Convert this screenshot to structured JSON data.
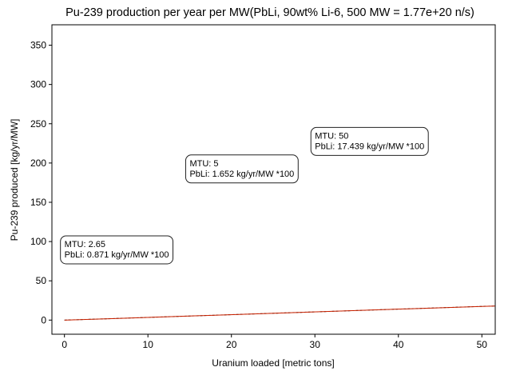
{
  "chart_data": {
    "type": "line",
    "title": "Pu-239 production per year per MW(PbLi, 90wt% Li-6, 500 MW = 1.77e+20 n/s)",
    "xlabel": "Uranium loaded [metric tons]",
    "ylabel": "Pu-239 produced [kg/yr/MW]",
    "xlim": [
      -1.5,
      51.6
    ],
    "ylim": [
      -18,
      376
    ],
    "xticks": [
      0,
      10,
      20,
      30,
      40,
      50
    ],
    "yticks": [
      0,
      50,
      100,
      150,
      200,
      250,
      300,
      350
    ],
    "grid": false,
    "series": [
      {
        "color": "#000000",
        "style": "dashed",
        "x": [
          0,
          2.65,
          5,
          50,
          51.6
        ],
        "y": [
          0,
          0.871,
          1.652,
          17.439,
          17.9
        ]
      },
      {
        "color": "#cc2200",
        "style": "solid",
        "x": [
          0,
          2.65,
          5,
          50,
          51.6
        ],
        "y": [
          0,
          0.871,
          1.652,
          17.439,
          17.9
        ]
      }
    ],
    "annotations": [
      {
        "line1": "MTU: 2.65",
        "line2": "PbLi: 0.871 kg/yr/MW *100",
        "x": 0,
        "y": 93
      },
      {
        "line1": "MTU: 5",
        "line2": "PbLi: 1.652 kg/yr/MW *100",
        "x": 15,
        "y": 196
      },
      {
        "line1": "MTU: 50",
        "line2": "PbLi: 17.439 kg/yr/MW *100",
        "x": 30,
        "y": 231
      }
    ]
  }
}
